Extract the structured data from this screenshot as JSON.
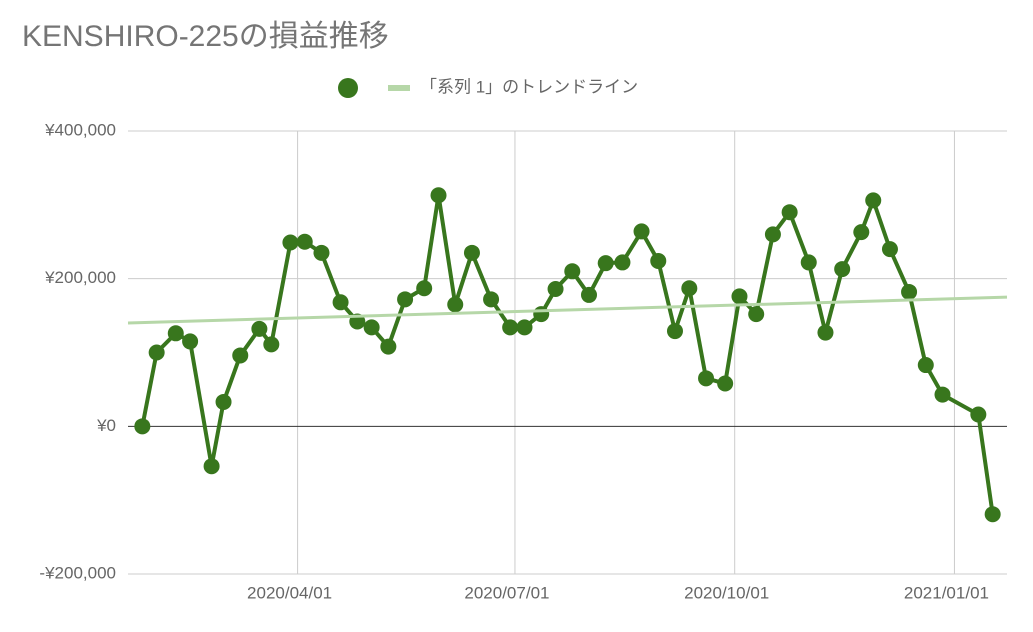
{
  "chart_data": {
    "type": "line",
    "title": "KENSHIRO-225の損益推移",
    "series": [
      {
        "color": "#38761d",
        "x": [
          "2020/01/27",
          "2020/02/02",
          "2020/02/10",
          "2020/02/16",
          "2020/02/25",
          "2020/03/01",
          "2020/03/08",
          "2020/03/16",
          "2020/03/21",
          "2020/03/29",
          "2020/04/04",
          "2020/04/11",
          "2020/04/19",
          "2020/04/26",
          "2020/05/02",
          "2020/05/09",
          "2020/05/16",
          "2020/05/24",
          "2020/05/30",
          "2020/06/06",
          "2020/06/13",
          "2020/06/21",
          "2020/06/29",
          "2020/07/05",
          "2020/07/12",
          "2020/07/18",
          "2020/07/25",
          "2020/08/01",
          "2020/08/08",
          "2020/08/15",
          "2020/08/23",
          "2020/08/30",
          "2020/09/06",
          "2020/09/12",
          "2020/09/19",
          "2020/09/27",
          "2020/10/03",
          "2020/10/10",
          "2020/10/17",
          "2020/10/24",
          "2020/11/01",
          "2020/11/08",
          "2020/11/15",
          "2020/11/23",
          "2020/11/28",
          "2020/12/05",
          "2020/12/13",
          "2020/12/20",
          "2020/12/27",
          "2021/01/11",
          "2021/01/17"
        ],
        "values": [
          0,
          100000,
          126000,
          115000,
          -54000,
          33000,
          96000,
          132000,
          111000,
          249000,
          250000,
          235000,
          168000,
          142000,
          134000,
          108000,
          172000,
          187000,
          313000,
          165000,
          235000,
          172000,
          134000,
          134000,
          152000,
          186000,
          210000,
          178000,
          221000,
          222000,
          264000,
          224000,
          129000,
          187000,
          65000,
          58000,
          176000,
          152000,
          260000,
          290000,
          222000,
          127000,
          213000,
          263000,
          306000,
          240000,
          182000,
          83000,
          43000,
          16000,
          -119000
        ]
      },
      {
        "name": "「系列 1」のトレンドライン",
        "color": "#b6d7a8",
        "trendline": true,
        "x": [
          "2020/01/21",
          "2021/01/23"
        ],
        "values": [
          140000,
          175000
        ]
      }
    ],
    "xlim": [
      "2020/01/21",
      "2021/01/23"
    ],
    "xticks": [
      "2020/04/01",
      "2020/07/01",
      "2020/10/01",
      "2021/01/01"
    ],
    "ylim": [
      -200000,
      400000
    ],
    "yticks": [
      {
        "value": -200000,
        "label": "-¥200,000"
      },
      {
        "value": 0,
        "label": "¥0"
      },
      {
        "value": 200000,
        "label": "¥200,000"
      },
      {
        "value": 400000,
        "label": "¥400,000"
      }
    ],
    "grid": true
  }
}
